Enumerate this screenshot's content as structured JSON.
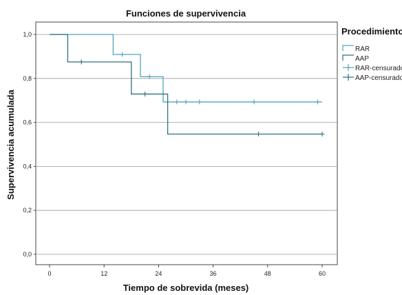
{
  "chart_data": {
    "type": "line",
    "title": "Funciones de supervivencia",
    "xlabel": "Tiempo de sobrevida (meses)",
    "ylabel": "Supervivencia acumulada",
    "xlim": [
      0,
      60
    ],
    "ylim": [
      0,
      1
    ],
    "x_ticks": [
      0,
      12,
      24,
      36,
      48,
      60
    ],
    "x_tick_labels": [
      "0",
      "12",
      "24",
      "36",
      "48",
      "60"
    ],
    "y_ticks": [
      0,
      0.2,
      0.4,
      0.6,
      0.8,
      1.0
    ],
    "y_tick_labels": [
      "0,0",
      "0,2",
      "0,4",
      "0,6",
      "0,8",
      "1,0"
    ],
    "grid": "horizontal",
    "legend_title": "Procedimiento",
    "legend_position": "right",
    "series": [
      {
        "name": "RAR",
        "color": "#4fa3bd",
        "steps": [
          [
            0,
            1.0
          ],
          [
            14,
            0.909
          ],
          [
            20,
            0.808
          ],
          [
            25,
            0.693
          ],
          [
            60,
            0.693
          ]
        ],
        "censored": [
          [
            16,
            0.909
          ],
          [
            22,
            0.808
          ],
          [
            28,
            0.693
          ],
          [
            30,
            0.693
          ],
          [
            33,
            0.693
          ],
          [
            45,
            0.693
          ],
          [
            59,
            0.693
          ]
        ]
      },
      {
        "name": "AAP",
        "color": "#2f6f80",
        "steps": [
          [
            0,
            1.0
          ],
          [
            4,
            0.875
          ],
          [
            18,
            0.729
          ],
          [
            26,
            0.547
          ],
          [
            60,
            0.547
          ]
        ],
        "censored": [
          [
            7,
            0.875
          ],
          [
            21,
            0.729
          ],
          [
            46,
            0.547
          ],
          [
            60,
            0.547
          ]
        ]
      }
    ],
    "legend_entries": [
      {
        "label": "RAR",
        "kind": "step",
        "series": 0
      },
      {
        "label": "AAP",
        "kind": "step",
        "series": 1
      },
      {
        "label": "RAR-censurado",
        "kind": "censor",
        "series": 0
      },
      {
        "label": "AAP-censurado",
        "kind": "censor",
        "series": 1
      }
    ]
  }
}
